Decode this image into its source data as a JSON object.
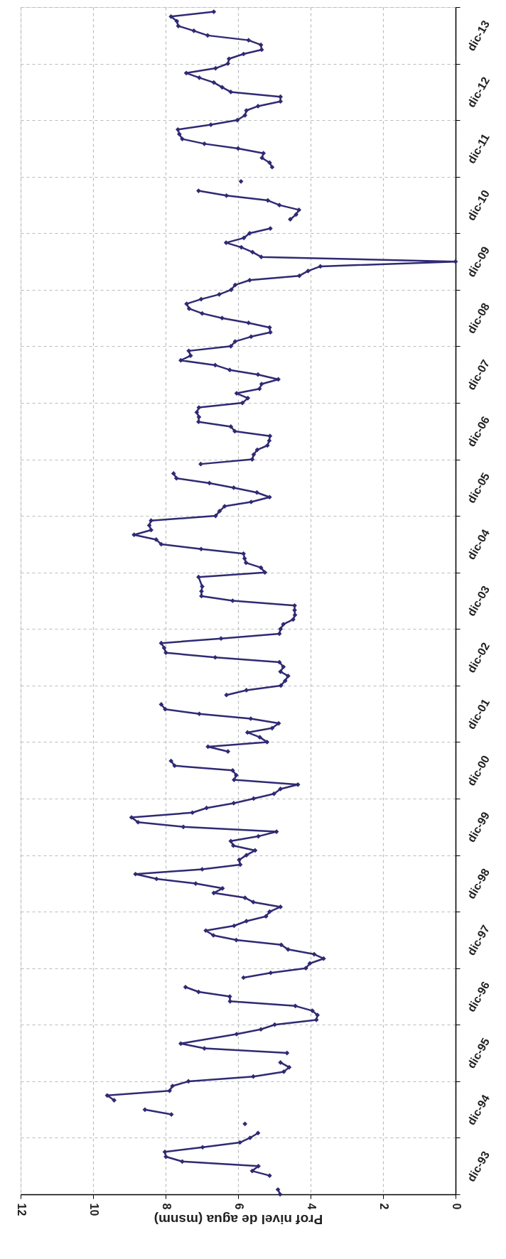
{
  "chart_data": {
    "type": "line",
    "xlabel": "Prof nivel de agua (msnm)",
    "orientation": "horizontal",
    "color": "#2f2a73",
    "marker": "diamond",
    "grid": true,
    "ylim": [
      "1993-12",
      "2014-12"
    ],
    "xlim": [
      12,
      0
    ],
    "xticks": [
      12,
      10,
      8,
      6,
      4,
      2,
      0
    ],
    "yticks": [
      {
        "value": "1993-12",
        "label": null
      },
      {
        "value": "1994-06",
        "label": "dic-93"
      },
      {
        "value": "1994-12",
        "label": null
      },
      {
        "value": "1995-06",
        "label": "dic-94"
      },
      {
        "value": "1995-12",
        "label": null
      },
      {
        "value": "1996-06",
        "label": "dic-95"
      },
      {
        "value": "1996-12",
        "label": null
      },
      {
        "value": "1997-06",
        "label": "dic-96"
      },
      {
        "value": "1997-12",
        "label": null
      },
      {
        "value": "1998-06",
        "label": "dic-97"
      },
      {
        "value": "1998-12",
        "label": null
      },
      {
        "value": "1999-06",
        "label": "dic-98"
      },
      {
        "value": "1999-12",
        "label": null
      },
      {
        "value": "2000-06",
        "label": "dic-99"
      },
      {
        "value": "2000-12",
        "label": null
      },
      {
        "value": "2001-06",
        "label": "dic-00"
      },
      {
        "value": "2001-12",
        "label": null
      },
      {
        "value": "2002-06",
        "label": "dic-01"
      },
      {
        "value": "2002-12",
        "label": null
      },
      {
        "value": "2003-06",
        "label": "dic-02"
      },
      {
        "value": "2003-12",
        "label": null
      },
      {
        "value": "2004-06",
        "label": "dic-03"
      },
      {
        "value": "2004-12",
        "label": null
      },
      {
        "value": "2005-06",
        "label": "dic-04"
      },
      {
        "value": "2005-12",
        "label": null
      },
      {
        "value": "2006-06",
        "label": "dic-05"
      },
      {
        "value": "2006-12",
        "label": null
      },
      {
        "value": "2007-06",
        "label": "dic-06"
      },
      {
        "value": "2007-12",
        "label": null
      },
      {
        "value": "2008-06",
        "label": "dic-07"
      },
      {
        "value": "2008-12",
        "label": null
      },
      {
        "value": "2009-06",
        "label": "dic-08"
      },
      {
        "value": "2009-12",
        "label": null
      },
      {
        "value": "2010-06",
        "label": "dic-09"
      },
      {
        "value": "2010-12",
        "label": null
      },
      {
        "value": "2011-06",
        "label": "dic-10"
      },
      {
        "value": "2011-12",
        "label": null
      },
      {
        "value": "2012-06",
        "label": "dic-11"
      },
      {
        "value": "2012-12",
        "label": null
      },
      {
        "value": "2013-06",
        "label": "dic-12"
      },
      {
        "value": "2013-12",
        "label": null
      },
      {
        "value": "2014-06",
        "label": "dic-13"
      },
      {
        "value": "2014-12",
        "label": null
      }
    ],
    "x": [
      "1993-12",
      "1994-01",
      "1994-02",
      "1994-04",
      "1994-05",
      "1994-06",
      "1994-07",
      "1994-08",
      "1994-09",
      "1994-10",
      "1994-11",
      "1994-12",
      "1995-01",
      "1995-02",
      "1995-03",
      "1995-04",
      "1995-05",
      "1995-06",
      "1995-07",
      "1995-08",
      "1995-09",
      "1995-10",
      "1995-11",
      "1995-12",
      "1996-01",
      "1996-02",
      "1996-03",
      "1996-04",
      "1996-05",
      "1996-06",
      "1996-07",
      "1996-08",
      "1996-10",
      "1996-11",
      "1996-12",
      "1997-01",
      "1997-02",
      "1997-03",
      "1997-04",
      "1997-05",
      "1997-06",
      "1997-07",
      "1997-08",
      "1997-09",
      "1997-10",
      "1997-11",
      "1997-12",
      "1998-01",
      "1998-02",
      "1998-03",
      "1998-04",
      "1998-05",
      "1998-06",
      "1998-07",
      "1998-08",
      "1998-09",
      "1998-10",
      "1998-11",
      "1998-12",
      "1999-01",
      "1999-02",
      "1999-03",
      "1999-04",
      "1999-05",
      "1999-06",
      "1999-07",
      "1999-08",
      "1999-09",
      "1999-10",
      "1999-11",
      "1999-12",
      "2000-01",
      "2000-02",
      "2000-03",
      "2000-04",
      "2000-05",
      "2000-06",
      "2000-07",
      "2000-08",
      "2000-09",
      "2000-10",
      "2000-11",
      "2000-12",
      "2001-01",
      "2001-02",
      "2001-03",
      "2001-04",
      "2001-05",
      "2001-06",
      "2001-07",
      "2001-08",
      "2001-09",
      "2001-10",
      "2001-11",
      "2001-12",
      "2002-01",
      "2002-02",
      "2002-03",
      "2002-04",
      "2002-05",
      "2002-06",
      "2002-07",
      "2002-08",
      "2002-09",
      "2002-10",
      "2002-11",
      "2002-12",
      "2003-01",
      "2003-02",
      "2003-03",
      "2003-04",
      "2003-05",
      "2003-06",
      "2003-07",
      "2003-08",
      "2003-09",
      "2003-10",
      "2003-11",
      "2003-12",
      "2004-01",
      "2004-02",
      "2004-03",
      "2004-04",
      "2004-05",
      "2004-06",
      "2004-07",
      "2004-08",
      "2004-09",
      "2004-11",
      "2004-12",
      "2005-01",
      "2005-02",
      "2005-03",
      "2005-04",
      "2005-05",
      "2005-06",
      "2005-07",
      "2005-08",
      "2005-09",
      "2005-10",
      "2005-11",
      "2005-12",
      "2006-01",
      "2006-02",
      "2006-03",
      "2006-04",
      "2006-05",
      "2006-06",
      "2006-07",
      "2006-08",
      "2006-09",
      "2006-10",
      "2006-11",
      "2006-12",
      "2007-01",
      "2007-02",
      "2007-03",
      "2007-04",
      "2007-05",
      "2007-06",
      "2007-07",
      "2007-08",
      "2007-09",
      "2007-10",
      "2007-11",
      "2007-12",
      "2008-01",
      "2008-02",
      "2008-03",
      "2008-04",
      "2008-05",
      "2008-06",
      "2008-07",
      "2008-08",
      "2008-09",
      "2008-10",
      "2008-11",
      "2008-12",
      "2009-01",
      "2009-02",
      "2009-03",
      "2009-04",
      "2009-05",
      "2009-06",
      "2009-07",
      "2009-08",
      "2009-09",
      "2009-10",
      "2009-11",
      "2009-12",
      "2010-01",
      "2010-02",
      "2010-03",
      "2010-04",
      "2010-05",
      "2010-06",
      "2010-07",
      "2010-08",
      "2010-09",
      "2010-10",
      "2010-11",
      "2010-12",
      "2011-01",
      "2011-02",
      "2011-03",
      "2011-04",
      "2011-05",
      "2011-06",
      "2011-07",
      "2011-08",
      "2011-09",
      "2011-10",
      "2011-11",
      "2011-12",
      "2012-02",
      "2012-03",
      "2012-04",
      "2012-05",
      "2012-06",
      "2012-07",
      "2012-08",
      "2012-09",
      "2012-10",
      "2012-11",
      "2012-12",
      "2013-01",
      "2013-02",
      "2013-03",
      "2013-04",
      "2013-05",
      "2013-06",
      "2013-07",
      "2013-08",
      "2013-09",
      "2013-10",
      "2013-11",
      "2013-12",
      "2014-01",
      "2014-02",
      "2014-03",
      "2014-04",
      "2014-05",
      "2014-06",
      "2014-07",
      "2014-08",
      "2014-09",
      "2014-10",
      "2014-11"
    ],
    "values": [
      4.84,
      4.9,
      null,
      5.13,
      5.61,
      5.44,
      7.54,
      7.99,
      8.02,
      6.98,
      5.95,
      5.67,
      5.45,
      null,
      5.81,
      null,
      7.84,
      8.57,
      null,
      9.42,
      9.61,
      7.89,
      7.81,
      7.37,
      5.58,
      4.74,
      4.59,
      4.83,
      null,
      4.65,
      6.93,
      7.58,
      6.04,
      5.37,
      4.99,
      3.84,
      3.81,
      3.95,
      4.42,
      6.22,
      6.23,
      7.09,
      7.45,
      null,
      5.85,
      5.1,
      4.13,
      4.02,
      3.64,
      3.9,
      4.62,
      4.81,
      6.05,
      6.68,
      6.89,
      6.11,
      5.77,
      5.23,
      5.13,
      4.83,
      5.58,
      5.81,
      6.67,
      6.43,
      7.17,
      8.25,
      8.83,
      6.99,
      5.94,
      5.97,
      5.77,
      5.53,
      6.13,
      6.2,
      5.44,
      4.94,
      7.51,
      8.76,
      8.94,
      7.26,
      6.87,
      6.12,
      5.57,
      5.01,
      4.83,
      4.35,
      6.11,
      6.05,
      6.15,
      7.75,
      7.85,
      null,
      6.28,
      6.83,
      5.2,
      5.4,
      5.74,
      5.06,
      4.88,
      5.65,
      7.07,
      8.01,
      8.12,
      null,
      6.32,
      5.77,
      4.82,
      4.7,
      4.62,
      4.83,
      4.75,
      4.86,
      6.63,
      7.99,
      8.04,
      8.12,
      6.47,
      4.86,
      4.83,
      4.75,
      4.48,
      4.43,
      4.44,
      4.44,
      6.15,
      7.01,
      7.01,
      6.99,
      7.09,
      5.26,
      5.37,
      5.78,
      5.82,
      5.85,
      7.02,
      8.12,
      8.26,
      8.87,
      8.4,
      8.45,
      8.4,
      6.62,
      6.51,
      6.37,
      5.64,
      5.13,
      5.48,
      6.12,
      6.79,
      7.7,
      7.78,
      null,
      7.03,
      5.61,
      5.57,
      5.47,
      5.19,
      5.14,
      5.12,
      6.09,
      6.2,
      7.09,
      7.08,
      7.14,
      7.08,
      5.88,
      5.73,
      6.04,
      5.41,
      5.35,
      4.89,
      5.45,
      6.23,
      6.63,
      7.58,
      7.31,
      7.36,
      6.2,
      6.08,
      5.64,
      5.11,
      5.13,
      5.71,
      6.44,
      6.99,
      7.35,
      7.42,
      7.02,
      6.52,
      6.19,
      6.08,
      5.68,
      4.31,
      4.07,
      3.73,
      0,
      5.36,
      5.6,
      5.91,
      6.33,
      5.84,
      5.68,
      5.11,
      null,
      4.56,
      4.4,
      4.32,
      4.86,
      5.18,
      6.32,
      7.09,
      null,
      5.92,
      null,
      5.06,
      5.13,
      5.34,
      5.3,
      6.0,
      6.93,
      7.54,
      7.62,
      7.66,
      6.75,
      6.02,
      5.81,
      5.77,
      5.45,
      4.83,
      4.83,
      6.2,
      6.44,
      6.67,
      7.07,
      7.43,
      6.62,
      6.28,
      6.25,
      5.85,
      5.35,
      5.37,
      5.71,
      6.84,
      7.22,
      7.65,
      7.69,
      7.85,
      6.67
    ]
  }
}
